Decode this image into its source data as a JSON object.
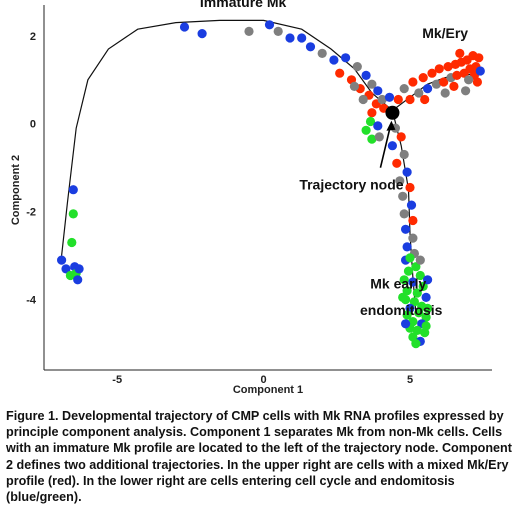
{
  "chart_data": {
    "type": "scatter",
    "xlabel": "Component 1",
    "ylabel": "Component 2",
    "xlim": [
      -7.5,
      7.8
    ],
    "ylim": [
      -5.6,
      2.7
    ],
    "x_ticks": [
      -5,
      0,
      5
    ],
    "y_ticks": [
      2,
      0,
      -2,
      -4
    ],
    "colors": {
      "red": "#ff2a00",
      "blue": "#1a3de0",
      "grey": "#7f7f7f",
      "green": "#22e02a",
      "line": "#111111"
    },
    "trajectory": {
      "main": [
        [
          -6.9,
          -3.0
        ],
        [
          -6.7,
          -1.8
        ],
        [
          -6.4,
          -0.1
        ],
        [
          -6.0,
          1.0
        ],
        [
          -5.3,
          1.7
        ],
        [
          -4.3,
          2.15
        ],
        [
          -3.0,
          2.3
        ],
        [
          -1.5,
          2.35
        ],
        [
          0.0,
          2.35
        ],
        [
          1.3,
          2.15
        ],
        [
          2.3,
          1.7
        ],
        [
          3.1,
          1.25
        ],
        [
          3.7,
          0.7
        ],
        [
          4.4,
          0.3
        ]
      ],
      "branch_up": [
        [
          4.4,
          0.3
        ],
        [
          5.0,
          0.6
        ],
        [
          5.6,
          0.9
        ],
        [
          6.2,
          1.05
        ],
        [
          6.8,
          1.1
        ],
        [
          7.3,
          1.15
        ]
      ],
      "branch_down": [
        [
          4.4,
          0.3
        ],
        [
          4.7,
          -0.5
        ],
        [
          4.95,
          -1.5
        ],
        [
          5.0,
          -2.5
        ],
        [
          5.1,
          -3.5
        ],
        [
          5.2,
          -4.3
        ]
      ]
    },
    "node": [
      4.4,
      0.25
    ],
    "points": [
      {
        "x": -6.5,
        "y": -1.5,
        "c": "blue"
      },
      {
        "x": -6.5,
        "y": -2.05,
        "c": "green"
      },
      {
        "x": -6.55,
        "y": -2.7,
        "c": "green"
      },
      {
        "x": -6.9,
        "y": -3.1,
        "c": "blue"
      },
      {
        "x": -6.75,
        "y": -3.3,
        "c": "blue"
      },
      {
        "x": -6.45,
        "y": -3.25,
        "c": "blue"
      },
      {
        "x": -6.6,
        "y": -3.45,
        "c": "green"
      },
      {
        "x": -6.4,
        "y": -3.4,
        "c": "green"
      },
      {
        "x": -6.35,
        "y": -3.55,
        "c": "blue"
      },
      {
        "x": -6.3,
        "y": -3.3,
        "c": "blue"
      },
      {
        "x": -2.7,
        "y": 2.2,
        "c": "blue"
      },
      {
        "x": -2.1,
        "y": 2.05,
        "c": "blue"
      },
      {
        "x": -0.5,
        "y": 2.1,
        "c": "grey"
      },
      {
        "x": 0.2,
        "y": 2.25,
        "c": "blue"
      },
      {
        "x": 0.5,
        "y": 2.1,
        "c": "grey"
      },
      {
        "x": 0.9,
        "y": 1.95,
        "c": "blue"
      },
      {
        "x": 1.3,
        "y": 1.95,
        "c": "blue"
      },
      {
        "x": 1.6,
        "y": 1.75,
        "c": "blue"
      },
      {
        "x": 2.0,
        "y": 1.6,
        "c": "grey"
      },
      {
        "x": 2.4,
        "y": 1.45,
        "c": "blue"
      },
      {
        "x": 2.6,
        "y": 1.15,
        "c": "red"
      },
      {
        "x": 2.8,
        "y": 1.5,
        "c": "blue"
      },
      {
        "x": 3.0,
        "y": 1.0,
        "c": "red"
      },
      {
        "x": 3.2,
        "y": 1.3,
        "c": "grey"
      },
      {
        "x": 3.3,
        "y": 0.8,
        "c": "red"
      },
      {
        "x": 3.5,
        "y": 1.1,
        "c": "blue"
      },
      {
        "x": 3.6,
        "y": 0.65,
        "c": "red"
      },
      {
        "x": 3.7,
        "y": 0.9,
        "c": "grey"
      },
      {
        "x": 3.85,
        "y": 0.45,
        "c": "red"
      },
      {
        "x": 3.9,
        "y": 0.75,
        "c": "blue"
      },
      {
        "x": 4.05,
        "y": 0.55,
        "c": "grey"
      },
      {
        "x": 4.1,
        "y": 0.35,
        "c": "red"
      },
      {
        "x": 3.4,
        "y": 0.55,
        "c": "grey"
      },
      {
        "x": 3.1,
        "y": 0.85,
        "c": "grey"
      },
      {
        "x": 3.7,
        "y": 0.25,
        "c": "red"
      },
      {
        "x": 3.65,
        "y": 0.05,
        "c": "green"
      },
      {
        "x": 3.5,
        "y": -0.15,
        "c": "green"
      },
      {
        "x": 3.7,
        "y": -0.35,
        "c": "green"
      },
      {
        "x": 3.9,
        "y": -0.05,
        "c": "blue"
      },
      {
        "x": 3.95,
        "y": -0.3,
        "c": "grey"
      },
      {
        "x": 4.6,
        "y": 0.55,
        "c": "red"
      },
      {
        "x": 4.8,
        "y": 0.8,
        "c": "grey"
      },
      {
        "x": 5.0,
        "y": 0.55,
        "c": "red"
      },
      {
        "x": 5.1,
        "y": 0.95,
        "c": "red"
      },
      {
        "x": 5.3,
        "y": 0.7,
        "c": "grey"
      },
      {
        "x": 5.45,
        "y": 1.05,
        "c": "red"
      },
      {
        "x": 5.6,
        "y": 0.8,
        "c": "blue"
      },
      {
        "x": 5.75,
        "y": 1.15,
        "c": "red"
      },
      {
        "x": 5.9,
        "y": 0.9,
        "c": "grey"
      },
      {
        "x": 6.0,
        "y": 1.25,
        "c": "red"
      },
      {
        "x": 6.15,
        "y": 0.95,
        "c": "red"
      },
      {
        "x": 6.3,
        "y": 1.3,
        "c": "red"
      },
      {
        "x": 6.4,
        "y": 1.05,
        "c": "grey"
      },
      {
        "x": 6.55,
        "y": 1.35,
        "c": "red"
      },
      {
        "x": 6.6,
        "y": 1.1,
        "c": "red"
      },
      {
        "x": 6.75,
        "y": 1.4,
        "c": "red"
      },
      {
        "x": 6.85,
        "y": 1.15,
        "c": "red"
      },
      {
        "x": 6.95,
        "y": 1.45,
        "c": "red"
      },
      {
        "x": 7.05,
        "y": 1.25,
        "c": "red"
      },
      {
        "x": 7.15,
        "y": 1.55,
        "c": "red"
      },
      {
        "x": 7.25,
        "y": 1.3,
        "c": "red"
      },
      {
        "x": 7.35,
        "y": 1.5,
        "c": "red"
      },
      {
        "x": 7.2,
        "y": 1.1,
        "c": "red"
      },
      {
        "x": 7.0,
        "y": 1.0,
        "c": "grey"
      },
      {
        "x": 6.5,
        "y": 0.85,
        "c": "red"
      },
      {
        "x": 6.2,
        "y": 0.7,
        "c": "grey"
      },
      {
        "x": 7.4,
        "y": 1.2,
        "c": "blue"
      },
      {
        "x": 6.9,
        "y": 0.75,
        "c": "grey"
      },
      {
        "x": 5.5,
        "y": 0.55,
        "c": "red"
      },
      {
        "x": 6.7,
        "y": 1.6,
        "c": "red"
      },
      {
        "x": 7.3,
        "y": 0.95,
        "c": "red"
      },
      {
        "x": 4.3,
        "y": 0.6,
        "c": "blue"
      },
      {
        "x": 4.5,
        "y": -0.1,
        "c": "grey"
      },
      {
        "x": 4.7,
        "y": -0.3,
        "c": "red"
      },
      {
        "x": 4.4,
        "y": -0.5,
        "c": "blue"
      },
      {
        "x": 4.8,
        "y": -0.7,
        "c": "grey"
      },
      {
        "x": 4.55,
        "y": -0.9,
        "c": "red"
      },
      {
        "x": 4.9,
        "y": -1.1,
        "c": "blue"
      },
      {
        "x": 4.65,
        "y": -1.3,
        "c": "grey"
      },
      {
        "x": 5.0,
        "y": -1.45,
        "c": "red"
      },
      {
        "x": 4.75,
        "y": -1.65,
        "c": "grey"
      },
      {
        "x": 5.05,
        "y": -1.85,
        "c": "blue"
      },
      {
        "x": 4.8,
        "y": -2.05,
        "c": "grey"
      },
      {
        "x": 5.1,
        "y": -2.2,
        "c": "red"
      },
      {
        "x": 4.85,
        "y": -2.4,
        "c": "blue"
      },
      {
        "x": 5.1,
        "y": -2.6,
        "c": "grey"
      },
      {
        "x": 4.9,
        "y": -2.8,
        "c": "blue"
      },
      {
        "x": 5.15,
        "y": -2.95,
        "c": "grey"
      },
      {
        "x": 4.85,
        "y": -3.1,
        "c": "blue"
      },
      {
        "x": 5.2,
        "y": -3.25,
        "c": "green"
      },
      {
        "x": 4.95,
        "y": -3.35,
        "c": "green"
      },
      {
        "x": 5.35,
        "y": -3.45,
        "c": "green"
      },
      {
        "x": 4.8,
        "y": -3.55,
        "c": "green"
      },
      {
        "x": 5.1,
        "y": -3.6,
        "c": "blue"
      },
      {
        "x": 5.45,
        "y": -3.7,
        "c": "green"
      },
      {
        "x": 4.9,
        "y": -3.8,
        "c": "green"
      },
      {
        "x": 5.25,
        "y": -3.85,
        "c": "green"
      },
      {
        "x": 5.55,
        "y": -3.95,
        "c": "blue"
      },
      {
        "x": 4.85,
        "y": -4.0,
        "c": "green"
      },
      {
        "x": 5.15,
        "y": -4.05,
        "c": "green"
      },
      {
        "x": 5.4,
        "y": -4.15,
        "c": "green"
      },
      {
        "x": 5.0,
        "y": -4.2,
        "c": "blue"
      },
      {
        "x": 5.3,
        "y": -4.3,
        "c": "green"
      },
      {
        "x": 4.9,
        "y": -4.35,
        "c": "green"
      },
      {
        "x": 5.55,
        "y": -4.4,
        "c": "green"
      },
      {
        "x": 5.1,
        "y": -4.5,
        "c": "green"
      },
      {
        "x": 5.4,
        "y": -4.55,
        "c": "blue"
      },
      {
        "x": 5.0,
        "y": -4.65,
        "c": "green"
      },
      {
        "x": 5.25,
        "y": -4.7,
        "c": "green"
      },
      {
        "x": 5.5,
        "y": -4.75,
        "c": "green"
      },
      {
        "x": 5.1,
        "y": -4.85,
        "c": "green"
      },
      {
        "x": 5.35,
        "y": -4.95,
        "c": "blue"
      },
      {
        "x": 5.2,
        "y": -5.0,
        "c": "green"
      },
      {
        "x": 5.6,
        "y": -4.2,
        "c": "green"
      },
      {
        "x": 4.75,
        "y": -3.95,
        "c": "green"
      },
      {
        "x": 5.6,
        "y": -3.55,
        "c": "blue"
      },
      {
        "x": 5.0,
        "y": -3.05,
        "c": "green"
      },
      {
        "x": 5.35,
        "y": -3.1,
        "c": "grey"
      },
      {
        "x": 5.55,
        "y": -4.6,
        "c": "green"
      },
      {
        "x": 4.85,
        "y": -4.55,
        "c": "blue"
      }
    ],
    "annotations": [
      {
        "text": "Immature Mk",
        "x": -0.7,
        "y": 2.65
      },
      {
        "text": "Mk/Ery",
        "x": 6.2,
        "y": 1.95
      },
      {
        "text": "Trajectory node",
        "x": 3.0,
        "y": -1.5
      },
      {
        "text": "Mk early",
        "x": 4.6,
        "y": -3.75
      },
      {
        "text": "endomitosis",
        "x": 4.7,
        "y": -4.35
      }
    ]
  },
  "caption": "Figure 1. Developmental trajectory of CMP cells with Mk RNA profiles expressed by principle component analysis. Component 1 separates Mk from non-Mk cells. Cells with an immature Mk profile are located to the left of the trajectory node. Component 2 defines two additional trajectories. In the upper right are cells with a mixed Mk/Ery profile (red). In the lower right are cells entering cell cycle and endomitosis (blue/green)."
}
